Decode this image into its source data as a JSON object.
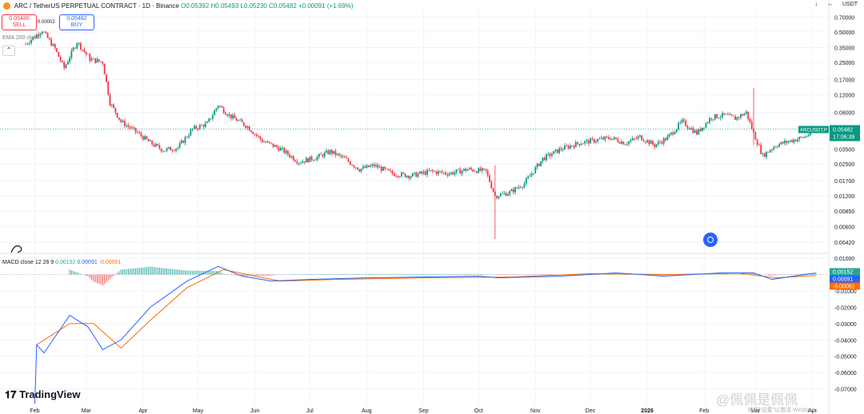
{
  "header": {
    "symbol": "ARC / TetherUS PERPETUAL CONTRACT · 1D · Binance",
    "o": "O0.05392",
    "h": "H0.05493",
    "l": "L0.05230",
    "c": "C0.05482",
    "chg": "+0.00091 (+1.69%)"
  },
  "trade": {
    "sell_price": "0.05480",
    "sell_label": "SELL",
    "spread": "0.00002",
    "buy_price": "0.05482",
    "buy_label": "BUY"
  },
  "indicators": {
    "ema": "EMA 200 close"
  },
  "macd": {
    "label": "MACD close 12 26 9",
    "hist": "0.00152",
    "macd": "0.00091",
    "signal": "-0.00061"
  },
  "toolbar": {
    "down": "↓",
    "arrows": "↔",
    "currency": "USDT"
  },
  "branding": {
    "logo_text": "TradingView"
  },
  "watermark": {
    "text": "@佩佩是佩佩",
    "sub": "转到\"设置\"以激活 Windows。"
  },
  "colors": {
    "up": "#089981",
    "down": "#f23645",
    "macd": "#2962ff",
    "signal": "#ff6d00",
    "hist_up": "#26a69a",
    "hist_down": "#ef5350"
  },
  "chart_data": [
    {
      "type": "candlestick",
      "title": "ARC / TetherUS PERPETUAL CONTRACT · 1D · Binance",
      "scale": "log",
      "y_ticks": [
        "0.70000",
        "0.50000",
        "0.35000",
        "0.25000",
        "0.17000",
        "0.12000",
        "0.08000",
        "0.05500",
        "0.03500",
        "0.02500",
        "0.01700",
        "0.01200",
        "0.00850",
        "0.00600",
        "0.00420"
      ],
      "x_ticks": [
        "Feb",
        "Mar",
        "Apr",
        "May",
        "Jun",
        "Jul",
        "Aug",
        "Sep",
        "Oct",
        "Nov",
        "Dec",
        "2026",
        "Feb",
        "Mar",
        "Apr"
      ],
      "last_price": "0.05482",
      "last_label": "ARCUSDT.P",
      "countdown": "17:06:39",
      "ylim": [
        0.0035,
        0.8
      ],
      "close_path": [
        [
          "2025-01-27",
          0.38
        ],
        [
          "2025-02-05",
          0.52
        ],
        [
          "2025-02-12",
          0.34
        ],
        [
          "2025-02-17",
          0.22
        ],
        [
          "2025-02-24",
          0.4
        ],
        [
          "2025-03-03",
          0.27
        ],
        [
          "2025-03-10",
          0.25
        ],
        [
          "2025-03-14",
          0.1
        ],
        [
          "2025-03-20",
          0.065
        ],
        [
          "2025-03-28",
          0.052
        ],
        [
          "2025-04-05",
          0.04
        ],
        [
          "2025-04-12",
          0.034
        ],
        [
          "2025-04-20",
          0.036
        ],
        [
          "2025-04-28",
          0.055
        ],
        [
          "2025-05-06",
          0.062
        ],
        [
          "2025-05-12",
          0.095
        ],
        [
          "2025-05-18",
          0.075
        ],
        [
          "2025-05-28",
          0.058
        ],
        [
          "2025-06-05",
          0.042
        ],
        [
          "2025-06-15",
          0.035
        ],
        [
          "2025-06-25",
          0.026
        ],
        [
          "2025-07-05",
          0.029
        ],
        [
          "2025-07-12",
          0.033
        ],
        [
          "2025-07-20",
          0.028
        ],
        [
          "2025-07-28",
          0.022
        ],
        [
          "2025-08-05",
          0.024
        ],
        [
          "2025-08-15",
          0.02
        ],
        [
          "2025-08-25",
          0.019
        ],
        [
          "2025-09-05",
          0.021
        ],
        [
          "2025-09-15",
          0.02
        ],
        [
          "2025-09-25",
          0.022
        ],
        [
          "2025-10-05",
          0.021
        ],
        [
          "2025-10-10",
          0.012
        ],
        [
          "2025-10-18",
          0.013
        ],
        [
          "2025-10-26",
          0.016
        ],
        [
          "2025-11-05",
          0.028
        ],
        [
          "2025-11-15",
          0.035
        ],
        [
          "2025-11-25",
          0.04
        ],
        [
          "2025-12-05",
          0.043
        ],
        [
          "2025-12-12",
          0.045
        ],
        [
          "2025-12-20",
          0.04
        ],
        [
          "2025-12-28",
          0.046
        ],
        [
          "2026-01-05",
          0.038
        ],
        [
          "2026-01-12",
          0.045
        ],
        [
          "2026-01-20",
          0.065
        ],
        [
          "2026-01-28",
          0.05
        ],
        [
          "2026-02-05",
          0.072
        ],
        [
          "2026-02-12",
          0.075
        ],
        [
          "2026-02-18",
          0.07
        ],
        [
          "2026-02-24",
          0.08
        ],
        [
          "2026-02-28",
          0.05
        ],
        [
          "2026-03-05",
          0.03
        ],
        [
          "2026-03-12",
          0.038
        ],
        [
          "2026-03-20",
          0.042
        ],
        [
          "2026-03-28",
          0.046
        ],
        [
          "2026-04-03",
          0.055
        ]
      ],
      "wicks": [
        [
          "2026-02-28",
          0.14,
          0.038
        ],
        [
          "2025-10-10",
          0.024,
          0.0045
        ]
      ]
    },
    {
      "type": "line",
      "title": "MACD close 12 26 9",
      "y_ticks": [
        "0.01000",
        "0.00000",
        "-0.01000",
        "-0.02000",
        "-0.03000",
        "-0.04000",
        "-0.05000",
        "-0.06000",
        "-0.07000"
      ],
      "ylim": [
        -0.079,
        0.011
      ],
      "series": [
        {
          "name": "MACD",
          "points": [
            [
              "2025-02-01",
              -0.079
            ],
            [
              "2025-02-02",
              -0.043
            ],
            [
              "2025-02-06",
              -0.048
            ],
            [
              "2025-02-20",
              -0.025
            ],
            [
              "2025-03-02",
              -0.032
            ],
            [
              "2025-03-10",
              -0.046
            ],
            [
              "2025-03-20",
              -0.04
            ],
            [
              "2025-04-05",
              -0.02
            ],
            [
              "2025-04-25",
              -0.004
            ],
            [
              "2025-05-12",
              0.005
            ],
            [
              "2025-05-25",
              -0.001
            ],
            [
              "2025-06-10",
              -0.004
            ],
            [
              "2025-07-01",
              -0.003
            ],
            [
              "2025-08-01",
              -0.002
            ],
            [
              "2025-10-01",
              -0.001
            ],
            [
              "2025-10-12",
              -0.002
            ],
            [
              "2025-11-15",
              -0.001
            ],
            [
              "2025-12-15",
              0.001
            ],
            [
              "2026-01-10",
              -0.001
            ],
            [
              "2026-02-10",
              0.001
            ],
            [
              "2026-02-28",
              0.001
            ],
            [
              "2026-03-10",
              -0.003
            ],
            [
              "2026-03-22",
              -0.001
            ],
            [
              "2026-04-03",
              0.0009
            ]
          ]
        },
        {
          "name": "Signal",
          "points": [
            [
              "2025-02-02",
              -0.043
            ],
            [
              "2025-02-20",
              -0.03
            ],
            [
              "2025-03-05",
              -0.03
            ],
            [
              "2025-03-20",
              -0.045
            ],
            [
              "2025-04-05",
              -0.028
            ],
            [
              "2025-04-25",
              -0.008
            ],
            [
              "2025-05-15",
              0.003
            ],
            [
              "2025-06-01",
              -0.001
            ],
            [
              "2025-06-15",
              -0.004
            ],
            [
              "2025-07-15",
              -0.003
            ],
            [
              "2025-09-01",
              -0.002
            ],
            [
              "2025-10-20",
              -0.0015
            ],
            [
              "2025-12-01",
              0.0005
            ],
            [
              "2026-01-15",
              0.0
            ],
            [
              "2026-02-20",
              0.0008
            ],
            [
              "2026-03-12",
              -0.002
            ],
            [
              "2026-04-03",
              -0.0006
            ]
          ]
        }
      ],
      "histogram_last": 0.00152
    }
  ]
}
